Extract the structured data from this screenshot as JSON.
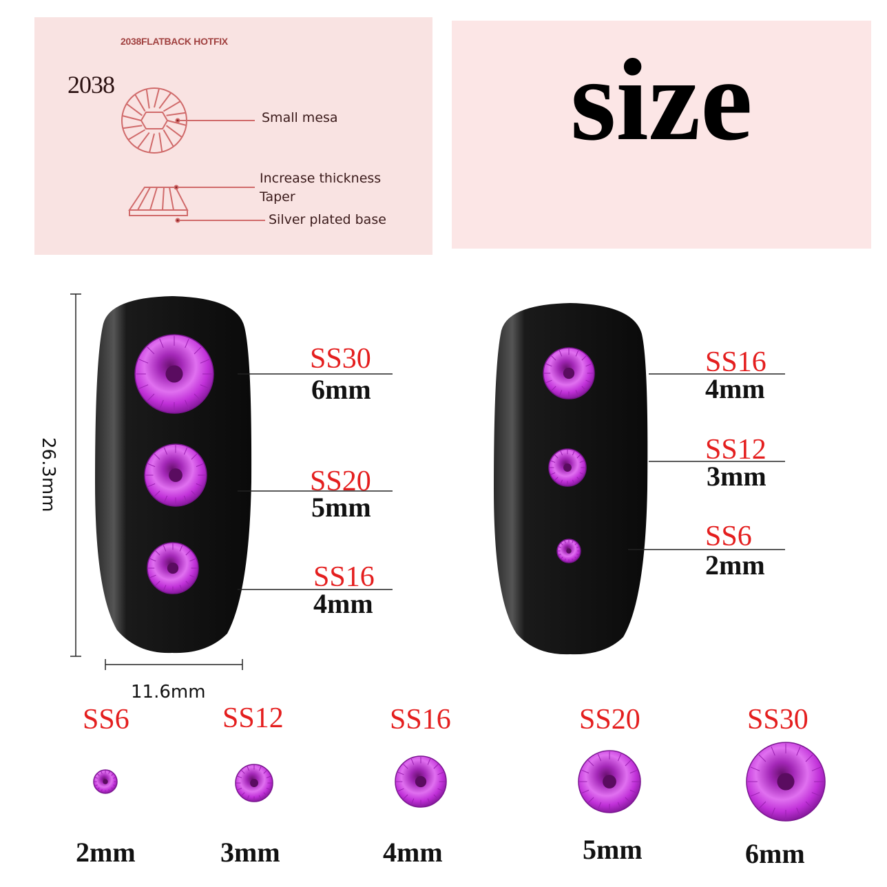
{
  "diagram": {
    "title": "2038FLATBACK HOTFIX",
    "model": "2038",
    "labels": [
      "Small mesa",
      "Increase thickness",
      "Taper",
      "Silver plated base"
    ]
  },
  "headline": "size",
  "dimensions": {
    "height": "26.3mm",
    "width": "11.6mm"
  },
  "left_nail": [
    {
      "code": "SS30",
      "size": "6mm"
    },
    {
      "code": "SS20",
      "size": "5mm"
    },
    {
      "code": "SS16",
      "size": "4mm"
    }
  ],
  "right_nail": [
    {
      "code": "SS16",
      "size": "4mm"
    },
    {
      "code": "SS12",
      "size": "3mm"
    },
    {
      "code": "SS6",
      "size": "2mm"
    }
  ],
  "bottom_row": [
    {
      "code": "SS6",
      "size": "2mm"
    },
    {
      "code": "SS12",
      "size": "3mm"
    },
    {
      "code": "SS16",
      "size": "4mm"
    },
    {
      "code": "SS20",
      "size": "5mm"
    },
    {
      "code": "SS30",
      "size": "6mm"
    }
  ],
  "colors": {
    "gem": "#c62be0",
    "label_red": "#e41e1e",
    "nail": "#111111",
    "panel": "#f9e3e2",
    "diagram_line": "#d06a6a"
  }
}
